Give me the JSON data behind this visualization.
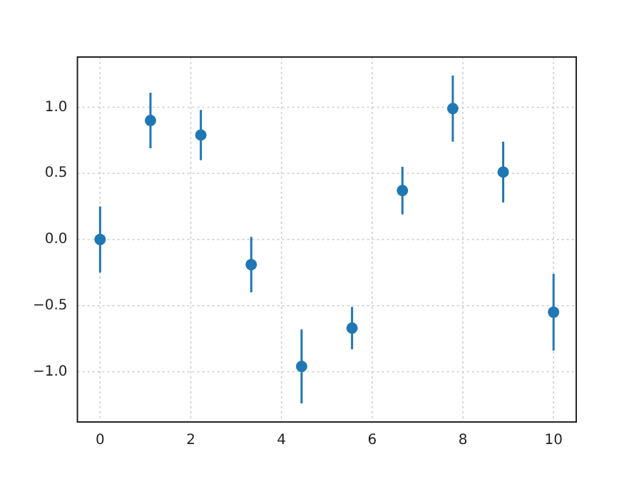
{
  "chart_data": {
    "type": "scatter",
    "x": [
      0,
      1.111,
      2.222,
      3.333,
      4.444,
      5.556,
      6.667,
      7.778,
      8.889,
      10
    ],
    "values": [
      0,
      0.9,
      0.79,
      -0.19,
      -0.96,
      -0.67,
      0.37,
      0.99,
      0.51,
      -0.55
    ],
    "errors": [
      0.25,
      0.21,
      0.19,
      0.21,
      0.28,
      0.16,
      0.18,
      0.25,
      0.23,
      0.29
    ],
    "color": "#1f77b4",
    "marker": "circle",
    "xlim": [
      -0.5,
      10.5
    ],
    "xticks": [
      0,
      2,
      4,
      6,
      8,
      10
    ],
    "ylim": [
      -1.38,
      1.38
    ],
    "yticks": [
      {
        "value": -1,
        "label": "−1.0"
      },
      {
        "value": -0.5,
        "label": "−0.5"
      },
      {
        "value": 0,
        "label": "0.0"
      },
      {
        "value": 0.5,
        "label": "0.5"
      },
      {
        "value": 1,
        "label": "1.0"
      }
    ],
    "grid": true
  }
}
